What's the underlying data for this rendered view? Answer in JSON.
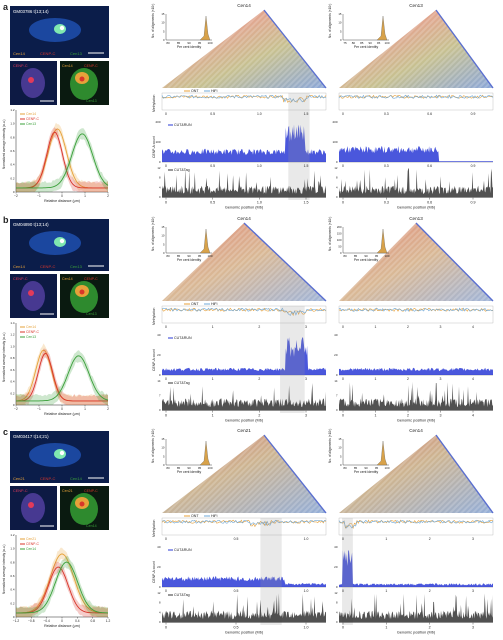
{
  "panels": [
    {
      "letter": "a",
      "cell_line": "GM03786 t(13;14)",
      "chr_labels": [
        "Cen14",
        "CENP-C",
        "Cen13"
      ],
      "zoom_left": "CENP-C",
      "zoom_right": [
        "Cen14",
        "CENP-C",
        "Cen13"
      ],
      "left_title": "Cen14",
      "right_title": "Cen13",
      "left_hist_ticks": [
        "80",
        "85",
        "90",
        "95",
        "100"
      ],
      "right_hist_ticks": [
        "75",
        "80",
        "85",
        "90",
        "95",
        "100"
      ],
      "hist_y_left": [
        "0",
        "5",
        "10",
        "15"
      ],
      "hist_y_right": [
        "0",
        "5",
        "10",
        "15"
      ],
      "x_ticks_left": [
        "0",
        "0.5",
        "1.0",
        "1.5"
      ],
      "x_ticks_right": [
        "0",
        "0.3",
        "0.6",
        "0.9"
      ],
      "cutrun_y": [
        "0",
        "100",
        "200"
      ],
      "cuttag_y": [
        "0",
        "4",
        "8",
        "12"
      ],
      "profile_x_ticks": [
        "−2",
        "−1",
        "0",
        "1",
        "2"
      ],
      "profile_y_ticks": [
        "0",
        "0.2",
        "0.4",
        "0.6",
        "0.8",
        "1.0",
        "1.2"
      ]
    },
    {
      "letter": "b",
      "cell_line": "GM04890 t(13;14)",
      "chr_labels": [
        "Cen14",
        "CENP-C",
        "Cen13"
      ],
      "zoom_left": "CENP-C",
      "zoom_right": [
        "Cen14",
        "CENP-C",
        "Cen13"
      ],
      "left_title": "Cen14",
      "right_title": "Cen13",
      "left_hist_ticks": [
        "80",
        "85",
        "90",
        "95",
        "100"
      ],
      "right_hist_ticks": [
        "80",
        "85",
        "90",
        "95",
        "100"
      ],
      "hist_y_left": [
        "0",
        "5",
        "10",
        "15"
      ],
      "hist_y_right": [
        "0",
        "50",
        "100",
        "150",
        "200"
      ],
      "x_ticks_left": [
        "0",
        "1",
        "2",
        "3"
      ],
      "x_ticks_right": [
        "0",
        "1",
        "2",
        "3",
        "4"
      ],
      "cutrun_y": [
        "0",
        "20",
        "40"
      ],
      "cuttag_y": [
        "0",
        "7",
        "14"
      ],
      "profile_x_ticks": [
        "−2",
        "−1",
        "0",
        "1",
        "2"
      ],
      "profile_y_ticks": [
        "0",
        "0.2",
        "0.4",
        "0.6",
        "0.8",
        "1.0",
        "1.2",
        "1.4"
      ]
    },
    {
      "letter": "c",
      "cell_line": "GM03417 t(14;21)",
      "chr_labels": [
        "Cen21",
        "CENP-C",
        "Cen14"
      ],
      "zoom_left": "CENP-C",
      "zoom_right": [
        "Cen21",
        "CENP-C",
        "Cen14"
      ],
      "left_title": "Cen21",
      "right_title": "Cen14",
      "left_hist_ticks": [
        "80",
        "85",
        "90",
        "95",
        "100"
      ],
      "right_hist_ticks": [
        "80",
        "85",
        "90",
        "95",
        "100"
      ],
      "hist_y_left": [
        "0",
        "5",
        "10",
        "15"
      ],
      "hist_y_right": [
        "0",
        "5",
        "10",
        "15"
      ],
      "x_ticks_left": [
        "0",
        "0.5",
        "1.0"
      ],
      "x_ticks_right": [
        "0",
        "1",
        "2",
        "3"
      ],
      "cutrun_y": [
        "0",
        "20",
        "40"
      ],
      "cuttag_y": [
        "0",
        "4",
        "8",
        "12"
      ],
      "profile_x_ticks": [
        "−1.2",
        "−0.8",
        "−0.4",
        "0",
        "0.4",
        "0.8",
        "1.2"
      ],
      "profile_y_ticks": [
        "0",
        "0.2",
        "0.4",
        "0.6",
        "0.8",
        "1.0",
        "1.2"
      ]
    }
  ],
  "labels": {
    "alignments_y": "No. of alignments (×10³)",
    "per_cent_identity": "Per cent identity",
    "methylation": "Methylation",
    "cenpa_count": "CENP-A count",
    "genomic_position": "Genomic position (Mb)",
    "ont": "ONT",
    "hifi": "HiFi",
    "cutrun": "CUT&RUN",
    "cuttag": "CUT&Tag",
    "relative_distance": "Relative distance (μm)",
    "profile_y": "Normalized average intensity (a.u.)"
  },
  "colors": {
    "ont": "#e8a13a",
    "hifi": "#6fa8d8",
    "cutrun": "#2a3ad6",
    "cuttag": "#333333",
    "cenpc": "#d8352a",
    "cen_green": "#3aa03a",
    "cen_orange": "#e6a23a"
  }
}
